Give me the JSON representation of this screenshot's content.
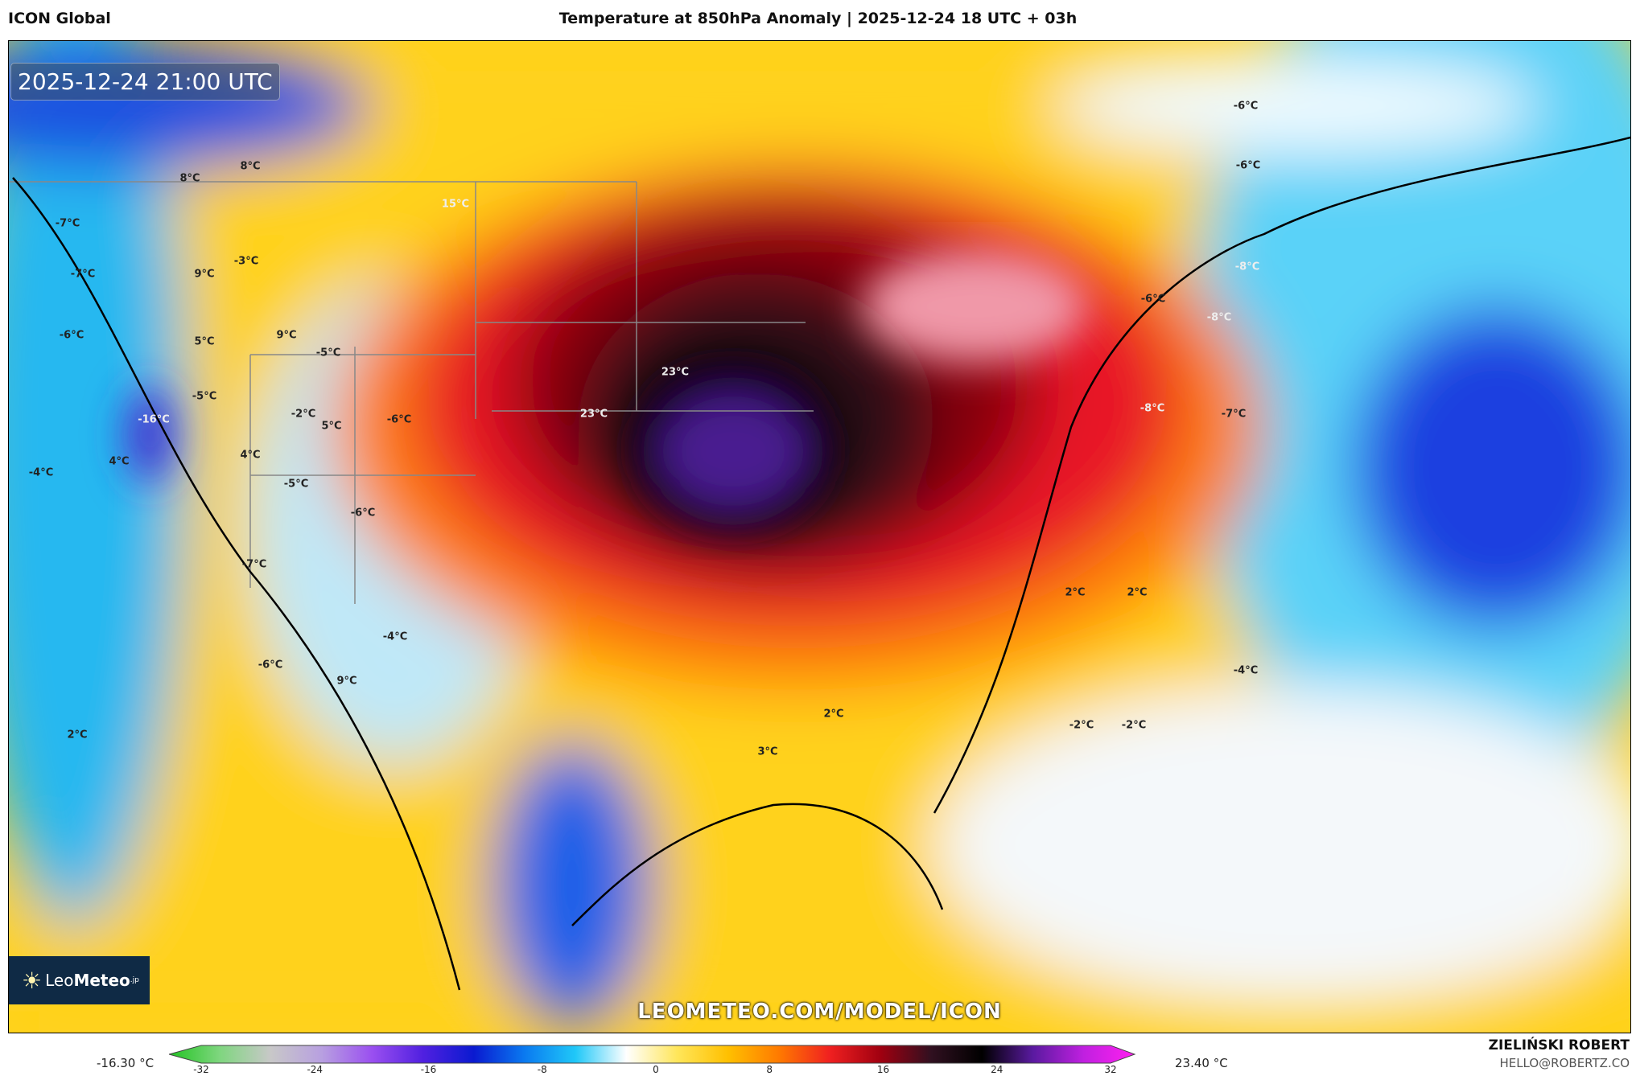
{
  "header": {
    "model": "ICON Global",
    "title": "Temperature at 850hPa Anomaly | 2025-12-24 18 UTC + 03h"
  },
  "map": {
    "timestamp": "2025-12-24 21:00 UTC",
    "labels": [
      "8°C",
      "8°C",
      "15°C",
      "-7°C",
      "-7°C",
      "-3°C",
      "9°C",
      "-6°C",
      "5°C",
      "9°C",
      "-5°C",
      "-5°C",
      "-2°C",
      "5°C",
      "-6°C",
      "-16°C",
      "23°C",
      "23°C",
      "-4°C",
      "4°C",
      "4°C",
      "-5°C",
      "-6°C",
      "-7°C",
      "-4°C",
      "-6°C",
      "9°C",
      "2°C",
      "2°C",
      "3°C",
      "2°C",
      "2°C",
      "-2°C",
      "-2°C",
      "-4°C",
      "-6°C",
      "-6°C",
      "-8°C",
      "-6°C",
      "-8°C",
      "-8°C",
      "-7°C"
    ],
    "watermark": "LEOMETEO.COM/MODEL/ICON",
    "logo": {
      "text_light": "Leo",
      "text_bold": "Meteo",
      "suffix": ".jp"
    }
  },
  "colorbar": {
    "min_label": "-16.30 °C",
    "max_label": "23.40 °C",
    "ticks": [
      "-32",
      "-24",
      "-16",
      "-8",
      "0",
      "8",
      "16",
      "24",
      "32"
    ],
    "colors": [
      "#22c422",
      "#7fd67f",
      "#c8c8c8",
      "#b8a0e0",
      "#9a4ff0",
      "#5020e0",
      "#0a1ad0",
      "#0a7af0",
      "#20c8f8",
      "#ffffff",
      "#ffe65a",
      "#ffc000",
      "#ff7a00",
      "#f02020",
      "#a00010",
      "#301020",
      "#000000",
      "#5a1aa0",
      "#c020e0",
      "#ff20f0"
    ]
  },
  "footer": {
    "author": "ZIELIŃSKI ROBERT",
    "email": "HELLO@ROBERTZ.CO"
  }
}
